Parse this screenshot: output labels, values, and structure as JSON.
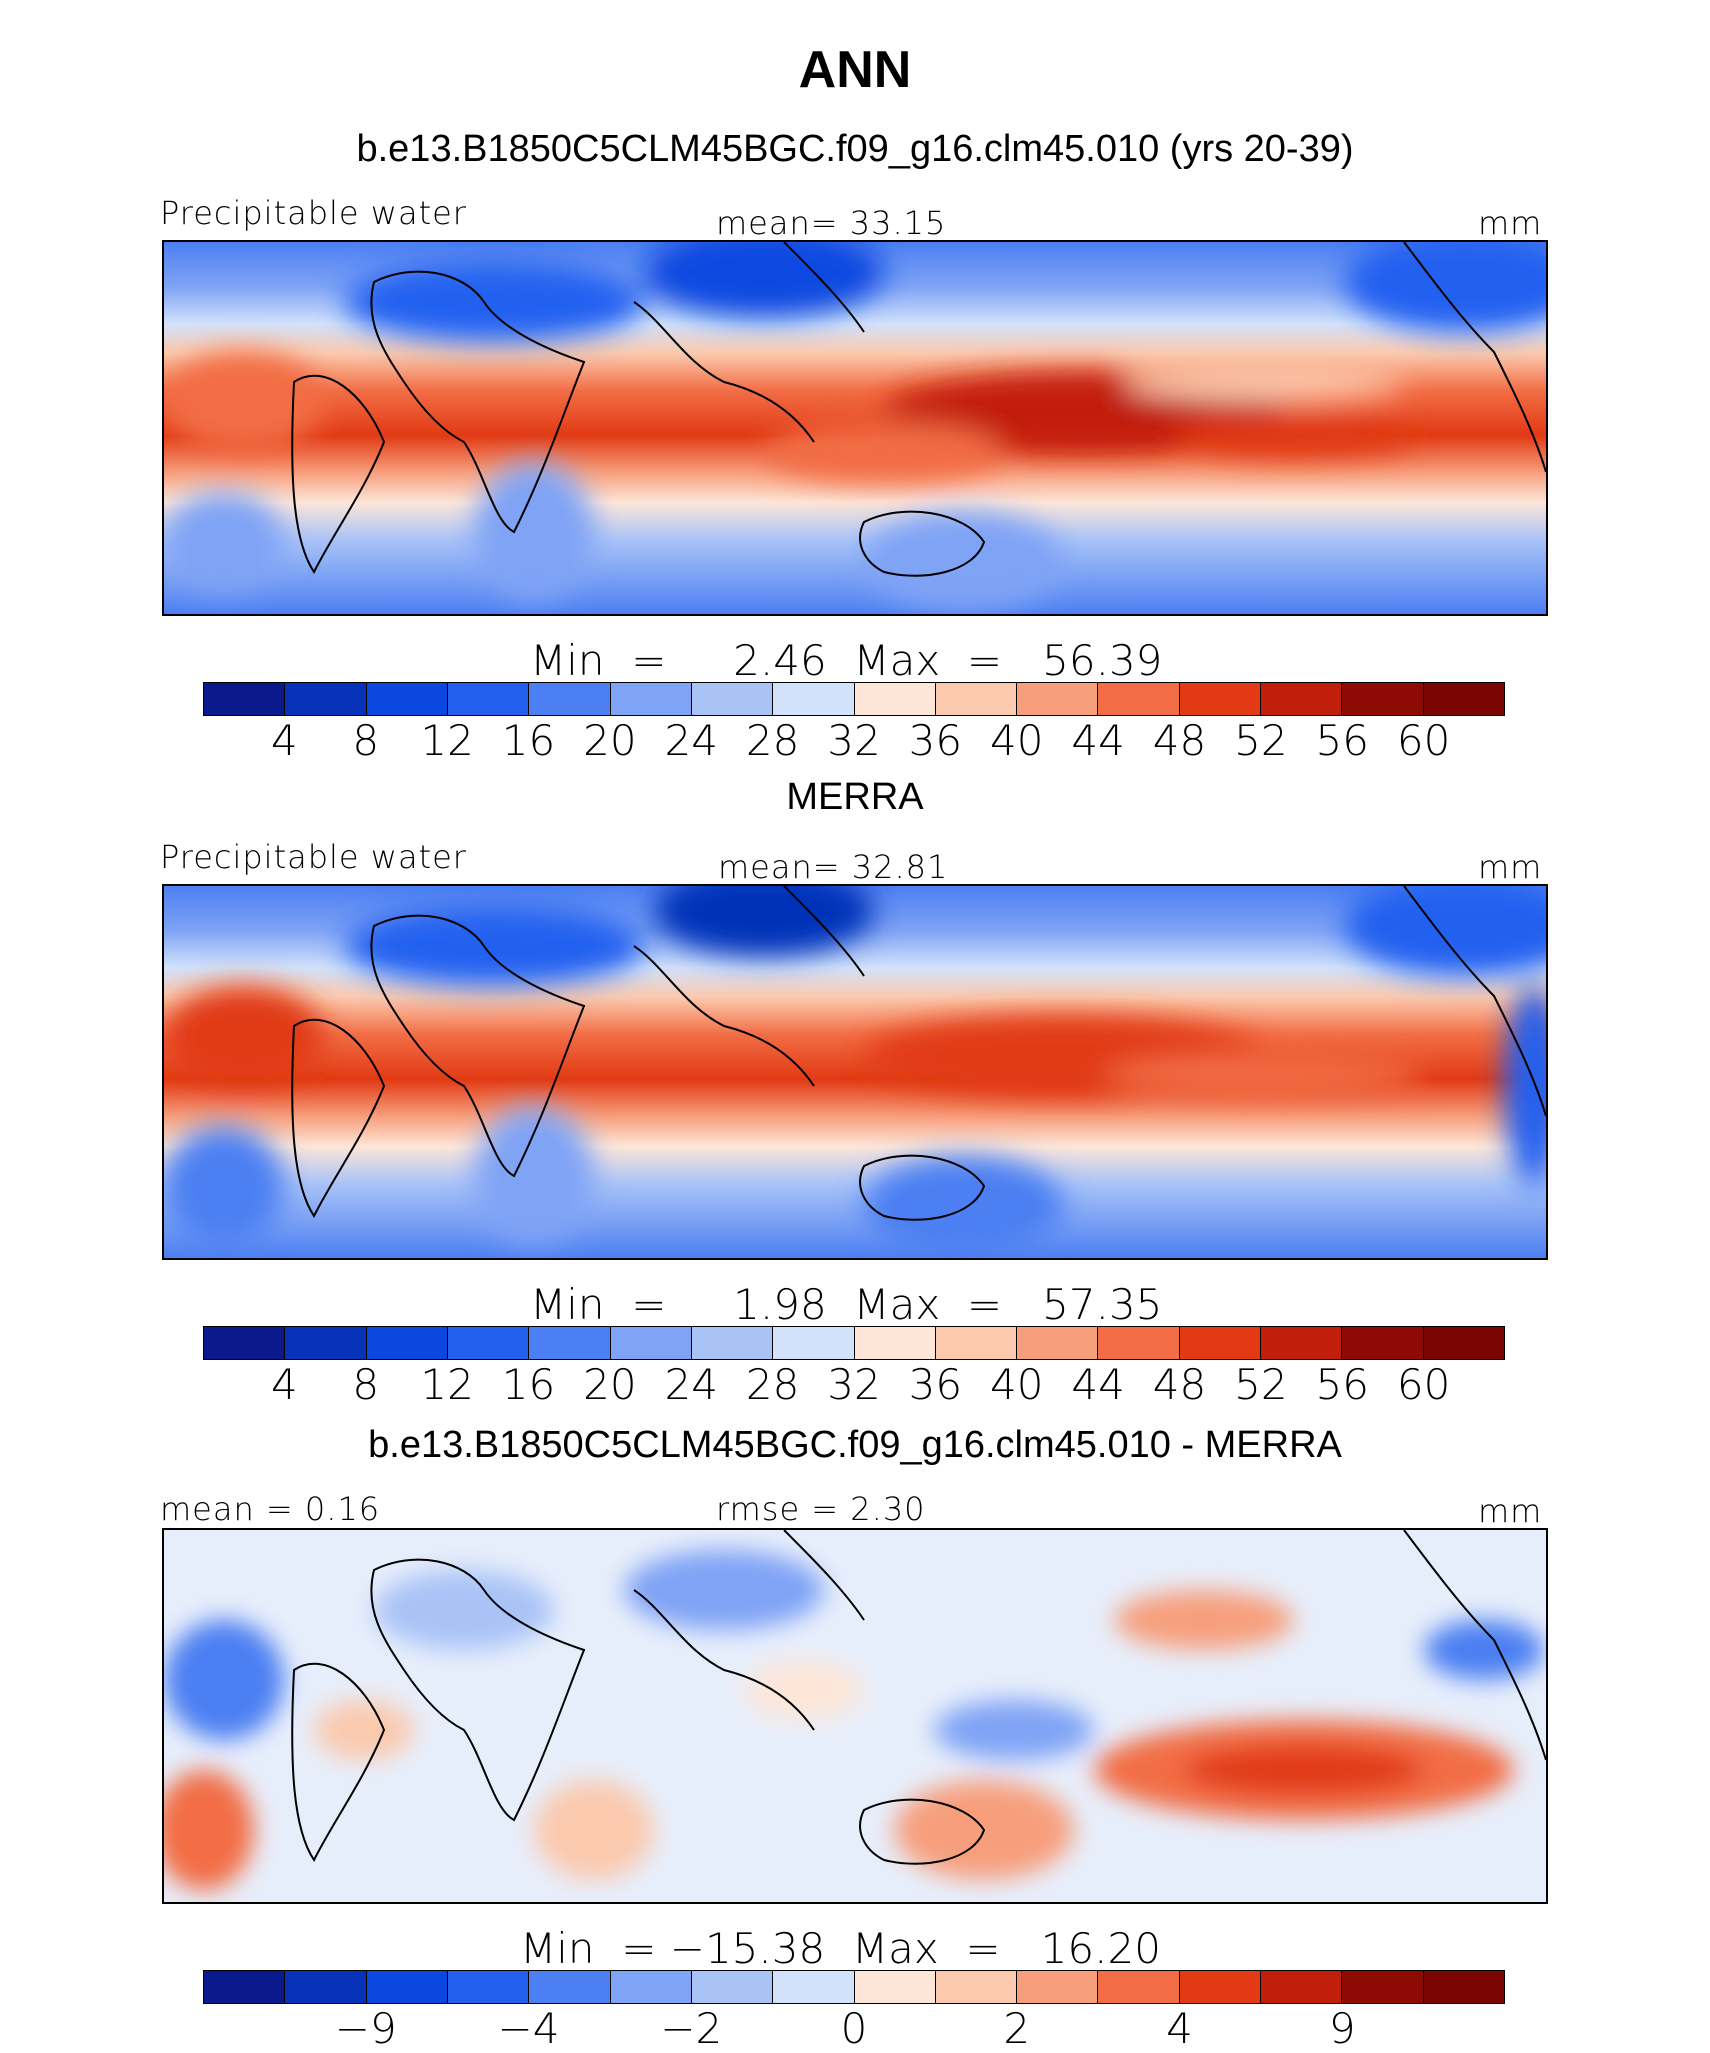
{
  "title": "ANN",
  "colors": {
    "seq": [
      "#0a1a8c",
      "#0633b8",
      "#0b48e0",
      "#2460f0",
      "#4c7ff2",
      "#7fa3f5",
      "#a9c3f7",
      "#d2e2fa",
      "#fde6d8",
      "#fbc9ad",
      "#f79f7d",
      "#f26d45",
      "#e13a14",
      "#c21e0c",
      "#8e0a05"
    ]
  },
  "panels": [
    {
      "subtitle": "b.e13.B1850C5CLM45BGC.f09_g16.clm45.010 (yrs 20-39)",
      "left_label": "Precipitable water",
      "center_label": "mean=   33.15",
      "unit": "mm",
      "minmax": "Min  =     2.46  Max  =   56.39",
      "ticks": [
        "4",
        "8",
        "12",
        "16",
        "20",
        "24",
        "28",
        "32",
        "36",
        "40",
        "44",
        "48",
        "52",
        "56",
        "60"
      ]
    },
    {
      "subtitle": "MERRA",
      "left_label": "Precipitable water",
      "center_label": "mean=   32.81",
      "unit": "mm",
      "minmax": "Min  =     1.98  Max  =   57.35",
      "ticks": [
        "4",
        "8",
        "12",
        "16",
        "20",
        "24",
        "28",
        "32",
        "36",
        "40",
        "44",
        "48",
        "52",
        "56",
        "60"
      ]
    },
    {
      "subtitle": "b.e13.B1850C5CLM45BGC.f09_g16.clm45.010 - MERRA",
      "left_label": "mean =    0.16",
      "center_label": "rmse =    2.30",
      "unit": "mm",
      "minmax": "Min  = −15.38  Max  =   16.20",
      "ticks": [
        "−9",
        "−4",
        "−2",
        "0",
        "2",
        "4",
        "9"
      ]
    }
  ]
}
